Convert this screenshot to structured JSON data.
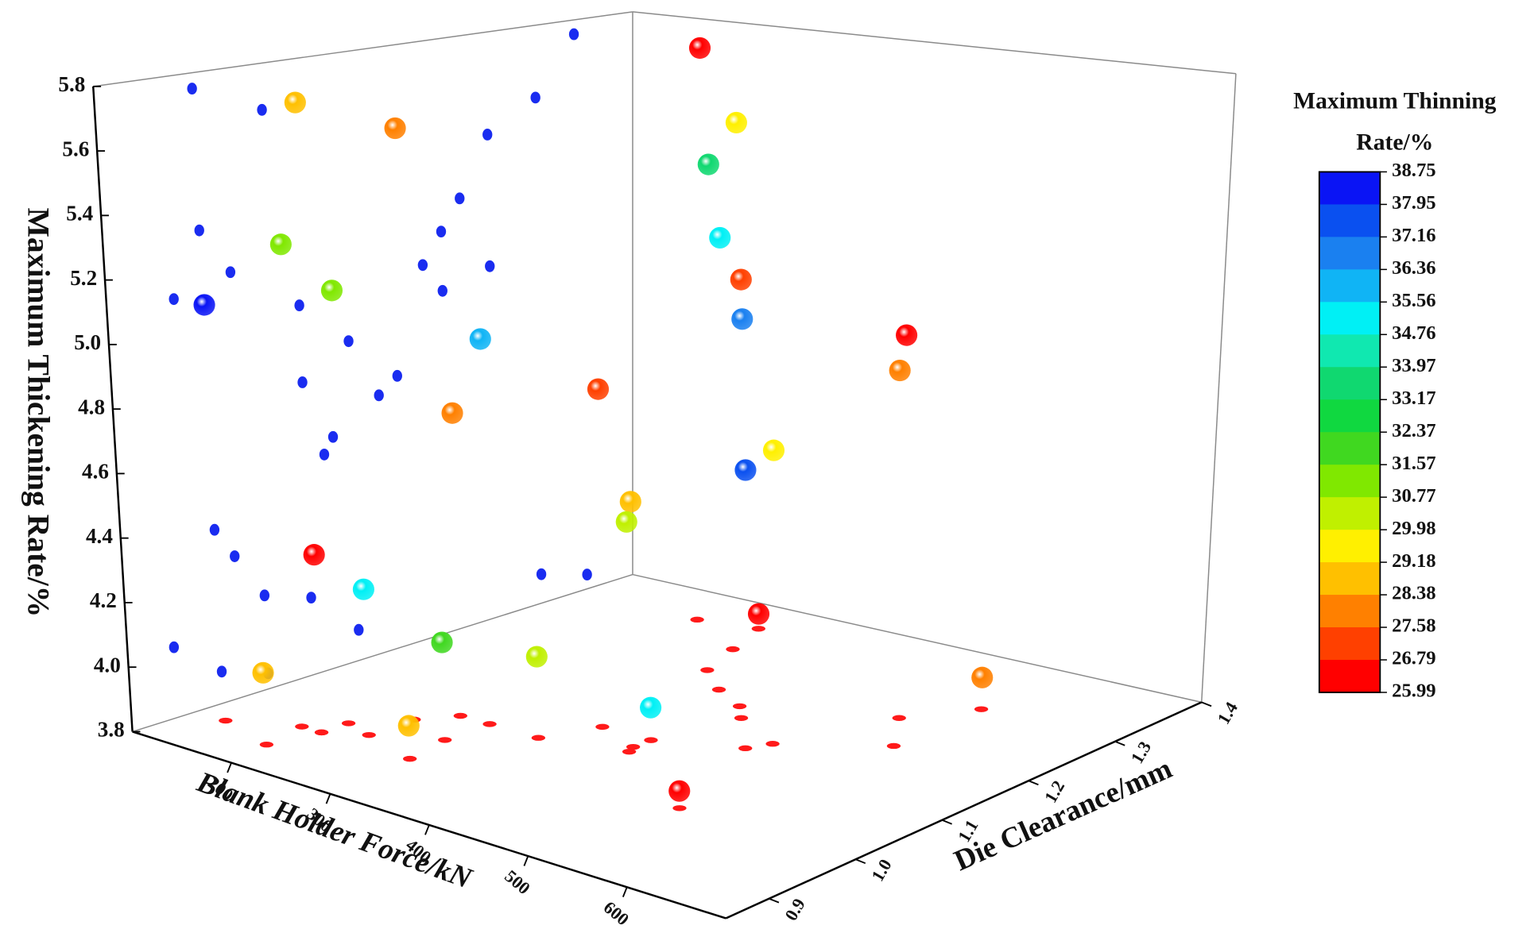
{
  "chart_data": {
    "type": "scatter3d",
    "xlabel": "Blank Holder Force/kN",
    "ylabel": "Die Clearance/mm",
    "zlabel": "Maximum Thickening Rate/%",
    "xlim": [
      100,
      700
    ],
    "ylim": [
      0.85,
      1.4
    ],
    "zlim": [
      3.8,
      5.8
    ],
    "xticks": [
      200,
      300,
      400,
      500,
      600
    ],
    "yticks": [
      0.9,
      {
        "value": 1.0,
        "label": "1.0"
      },
      1.1,
      1.2,
      1.3,
      1.4
    ],
    "zticks": [
      3.8,
      {
        "value": 4.0,
        "label": "4.0"
      },
      4.2,
      4.4,
      4.6,
      4.8,
      {
        "value": 5.0,
        "label": "5.0"
      },
      5.2,
      5.4,
      5.6,
      5.8
    ],
    "x": [
      225,
      300,
      320,
      360,
      400,
      420,
      520,
      560,
      350,
      250,
      480,
      470,
      400,
      405,
      200,
      230,
      180,
      200,
      130,
      280,
      200,
      230,
      280,
      330,
      190,
      290,
      280,
      400,
      560,
      520
    ],
    "y": [
      1.34,
      1.3,
      1.25,
      1.22,
      1.2,
      1.18,
      1.25,
      1.2,
      1.1,
      1.05,
      1.15,
      1.13,
      1.08,
      1.07,
      0.95,
      1.02,
      0.95,
      0.98,
      0.92,
      1.05,
      0.95,
      0.97,
      1.0,
      1.05,
      0.9,
      0.95,
      1.35,
      1.1,
      1.3,
      1.0
    ],
    "z": [
      5.75,
      5.55,
      5.45,
      5.25,
      5.15,
      5.05,
      5.0,
      4.95,
      4.85,
      4.75,
      4.7,
      4.65,
      4.55,
      4.5,
      5.75,
      5.65,
      5.3,
      5.15,
      5.1,
      5.0,
      4.35,
      4.25,
      4.1,
      4.05,
      4.02,
      3.9,
      3.85,
      3.9,
      3.9,
      3.85
    ],
    "values": [
      26.2,
      29.5,
      33.5,
      35.2,
      27.0,
      36.8,
      26.0,
      27.8,
      26.8,
      28.0,
      29.3,
      37.6,
      28.5,
      30.5,
      28.7,
      27.9,
      31.5,
      31.0,
      38.5,
      35.6,
      26.1,
      35.0,
      31.8,
      30.2,
      28.6,
      28.4,
      26.3,
      35.3,
      27.7,
      26.0
    ],
    "wall_color": "#1a2cf0",
    "floor_color": "#ff1a1a",
    "colorbar": {
      "title": [
        "Maximum Thinning",
        "Rate/%"
      ],
      "levels": [
        38.75,
        37.95,
        37.16,
        36.36,
        35.56,
        34.76,
        33.97,
        33.17,
        32.37,
        31.57,
        30.77,
        29.98,
        29.18,
        28.38,
        27.58,
        26.79,
        25.99
      ],
      "colors": [
        "#0a14f5",
        "#0a50f0",
        "#1a80f0",
        "#10b4f5",
        "#00f0f5",
        "#10e8b0",
        "#10d870",
        "#10d840",
        "#40d820",
        "#80e800",
        "#c0f000",
        "#fff000",
        "#ffc000",
        "#ff8000",
        "#ff4000",
        "#ff0000"
      ]
    }
  }
}
